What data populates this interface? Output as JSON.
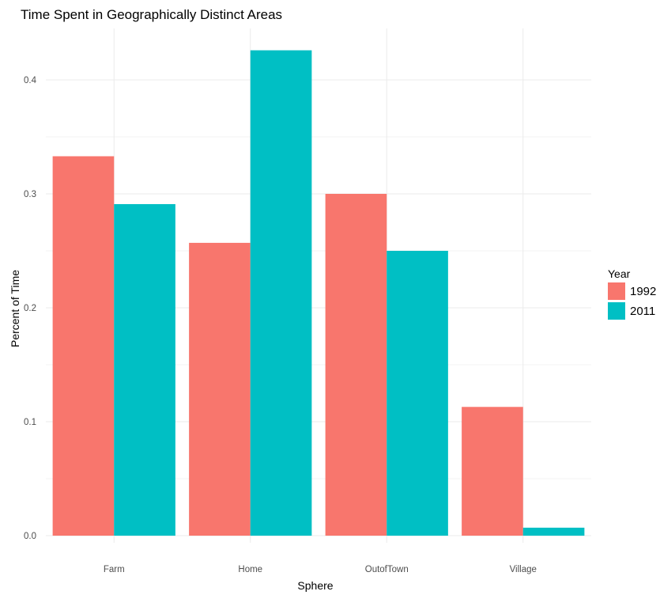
{
  "chart_data": {
    "type": "bar",
    "title": "Time Spent in Geographically Distinct Areas",
    "xlabel": "Sphere",
    "ylabel": "Percent of Time",
    "categories": [
      "Farm",
      "Home",
      "OutofTown",
      "Village"
    ],
    "series": [
      {
        "name": "1992",
        "color": "#F8766D",
        "values": [
          0.333,
          0.257,
          0.3,
          0.113
        ]
      },
      {
        "name": "2011",
        "color": "#00BFC4",
        "values": [
          0.291,
          0.426,
          0.25,
          0.007
        ]
      }
    ],
    "ylim": [
      0,
      0.45
    ],
    "yticks": [
      "0.0",
      "0.1",
      "0.2",
      "0.3",
      "0.4"
    ],
    "grid": true,
    "legend": {
      "title": "Year",
      "position": "right"
    }
  }
}
